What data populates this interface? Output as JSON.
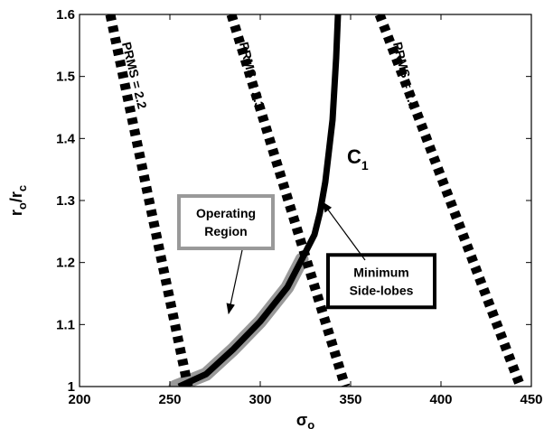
{
  "chart_data": {
    "type": "line",
    "title": "",
    "xlabel": "σ",
    "xlabel_sub": "o",
    "ylabel_r": "r",
    "ylabel_sub1": "o",
    "ylabel_slash": "/r",
    "ylabel_sub2": "c",
    "xlim": [
      200,
      450
    ],
    "ylim": [
      1.0,
      1.6
    ],
    "xticks": [
      200,
      250,
      300,
      350,
      400,
      450
    ],
    "yticks": [
      1,
      1.1,
      1.2,
      1.3,
      1.4,
      1.5,
      1.6
    ],
    "xtick_labels": [
      "200",
      "250",
      "300",
      "350",
      "400",
      "450"
    ],
    "ytick_labels": [
      "1",
      "1.1",
      "1.2",
      "1.3",
      "1.4",
      "1.5",
      "1.6"
    ],
    "grid": false,
    "series": [
      {
        "name": "PRMS = 2.2",
        "style": "dotted-thick",
        "x": [
          217,
          260
        ],
        "y": [
          1.6,
          1.0
        ]
      },
      {
        "name": "PRMS = 2.3",
        "style": "dotted-thick",
        "x": [
          284,
          347
        ],
        "y": [
          1.6,
          1.0
        ]
      },
      {
        "name": "PRMS = 2.4",
        "style": "dotted-thick",
        "x": [
          366,
          444
        ],
        "y": [
          1.6,
          1.0
        ]
      },
      {
        "name": "C1",
        "style": "solid-thick",
        "x": [
          255,
          270,
          285,
          300,
          315,
          323,
          330,
          333,
          336,
          338,
          340,
          341,
          342,
          343
        ],
        "y": [
          1.0,
          1.02,
          1.06,
          1.105,
          1.16,
          1.205,
          1.245,
          1.28,
          1.33,
          1.38,
          1.43,
          1.48,
          1.53,
          1.6
        ]
      },
      {
        "name": "Operating Region",
        "style": "gray-band",
        "x": [
          253,
          270,
          285,
          300,
          315,
          323
        ],
        "y": [
          1.0,
          1.02,
          1.06,
          1.105,
          1.16,
          1.205
        ]
      }
    ],
    "annotations": [
      {
        "text": "PRMS = 2.2",
        "x": 228,
        "y": 1.5
      },
      {
        "text": "PRMS = 2.3",
        "x": 293,
        "y": 1.5
      },
      {
        "text": "PRMS = 2.4",
        "x": 378,
        "y": 1.5
      },
      {
        "text": "C",
        "sub": "1",
        "x": 348,
        "y": 1.36
      },
      {
        "lines": [
          "Operating",
          "Region"
        ],
        "box": "gray",
        "x": 281,
        "y": 1.265
      },
      {
        "lines": [
          "Minimum",
          "Side-lobes"
        ],
        "box": "black",
        "x": 367,
        "y": 1.17
      }
    ],
    "colors": {
      "axes": "#000000",
      "curve": "#000000",
      "region": "#999999",
      "box_gray": "#999999"
    }
  }
}
